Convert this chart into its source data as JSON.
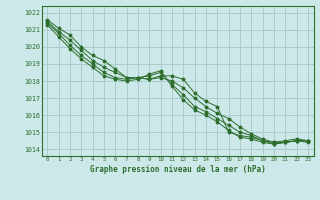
{
  "title": "Graphe pression niveau de la mer (hPa)",
  "background_color": "#cce8e8",
  "plot_bg_color": "#cce8e8",
  "grid_color": "#aacccc",
  "line_color": "#2d6e2d",
  "spine_color": "#2d6e2d",
  "xlim": [
    -0.5,
    23.5
  ],
  "ylim": [
    1013.6,
    1022.4
  ],
  "yticks": [
    1014,
    1015,
    1016,
    1017,
    1018,
    1019,
    1020,
    1021,
    1022
  ],
  "xticks": [
    0,
    1,
    2,
    3,
    4,
    5,
    6,
    7,
    8,
    9,
    10,
    11,
    12,
    13,
    14,
    15,
    16,
    17,
    18,
    19,
    20,
    21,
    22,
    23
  ],
  "series": [
    [
      1021.6,
      1021.1,
      1020.7,
      1020.0,
      1019.5,
      1019.2,
      1018.7,
      1018.2,
      1018.2,
      1018.1,
      1018.3,
      1018.3,
      1018.1,
      1017.3,
      1016.8,
      1016.5,
      1015.0,
      1014.8,
      1014.7,
      1014.5,
      1014.4,
      1014.5,
      1014.6,
      1014.5
    ],
    [
      1021.5,
      1020.9,
      1020.4,
      1019.8,
      1019.2,
      1018.8,
      1018.5,
      1018.2,
      1018.2,
      1018.1,
      1018.2,
      1018.0,
      1017.6,
      1017.0,
      1016.5,
      1016.1,
      1015.8,
      1015.3,
      1014.9,
      1014.6,
      1014.4,
      1014.4,
      1014.5,
      1014.5
    ],
    [
      1021.4,
      1020.8,
      1020.1,
      1019.5,
      1019.0,
      1018.5,
      1018.2,
      1018.1,
      1018.2,
      1018.3,
      1018.5,
      1017.8,
      1017.2,
      1016.5,
      1016.2,
      1015.8,
      1015.4,
      1015.0,
      1014.8,
      1014.5,
      1014.3,
      1014.4,
      1014.5,
      1014.5
    ],
    [
      1021.3,
      1020.6,
      1019.9,
      1019.3,
      1018.8,
      1018.3,
      1018.1,
      1018.0,
      1018.1,
      1018.4,
      1018.6,
      1017.7,
      1016.9,
      1016.3,
      1016.0,
      1015.6,
      1015.1,
      1014.7,
      1014.6,
      1014.4,
      1014.3,
      1014.4,
      1014.5,
      1014.4
    ]
  ]
}
